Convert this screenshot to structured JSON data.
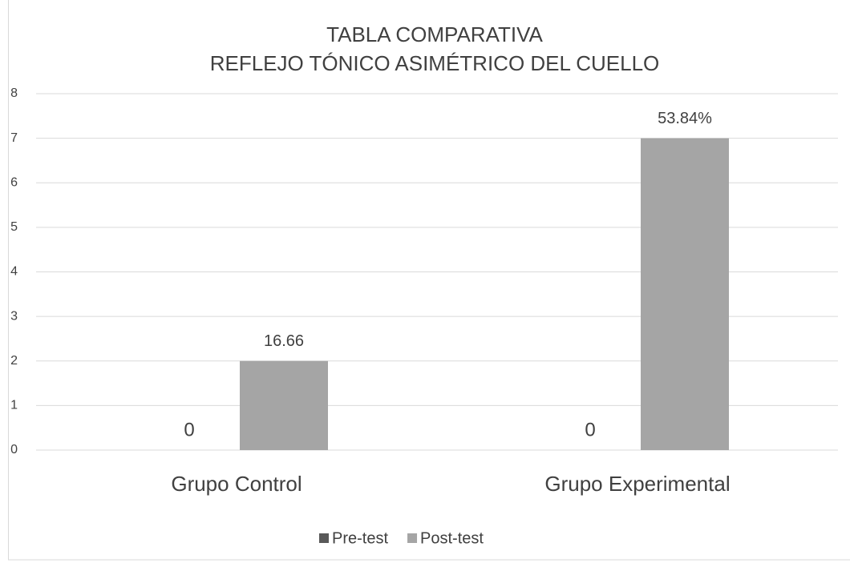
{
  "chart_data": {
    "type": "bar",
    "title": "TABLA COMPARATIVA",
    "subtitle": "REFLEJO TÓNICO ASIMÉTRICO DEL CUELLO",
    "categories": [
      "Grupo Control",
      "Grupo Experimental"
    ],
    "series": [
      {
        "name": "Pre-test",
        "color": "#595959",
        "values": [
          0,
          0
        ]
      },
      {
        "name": "Post-test",
        "color": "#a5a5a5",
        "values": [
          2,
          7
        ]
      }
    ],
    "annotations": [
      "16.66",
      "53.84%"
    ],
    "ylim": [
      0,
      8
    ],
    "yticks": [
      0,
      1,
      2,
      3,
      4,
      5,
      6,
      7,
      8
    ],
    "grid": true,
    "legend": "bottom"
  }
}
